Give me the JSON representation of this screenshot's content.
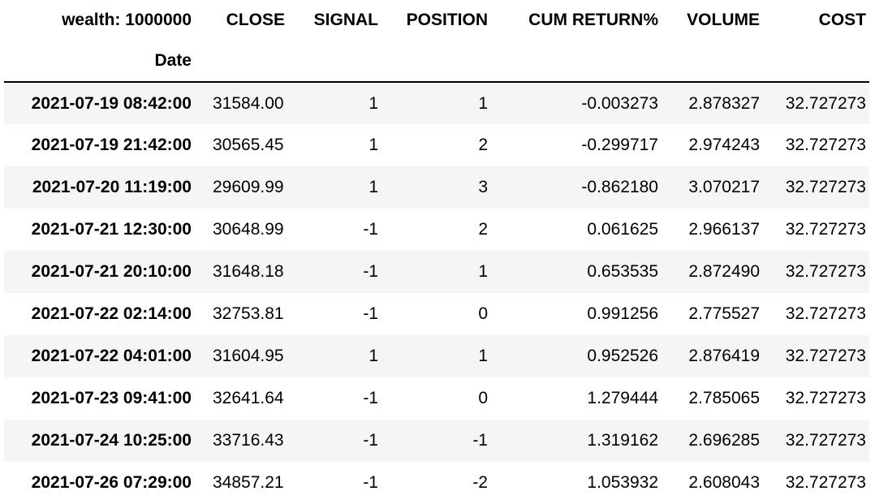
{
  "header": {
    "corner_label": "wealth: 1000000",
    "columns": [
      "CLOSE",
      "SIGNAL",
      "POSITION",
      "CUM RETURN%",
      "VOLUME",
      "COST"
    ],
    "index_name": "Date"
  },
  "rows": [
    {
      "date": "2021-07-19 08:42:00",
      "close": "31584.00",
      "signal": "1",
      "position": "1",
      "cum_return": "-0.003273",
      "volume": "2.878327",
      "cost": "32.727273"
    },
    {
      "date": "2021-07-19 21:42:00",
      "close": "30565.45",
      "signal": "1",
      "position": "2",
      "cum_return": "-0.299717",
      "volume": "2.974243",
      "cost": "32.727273"
    },
    {
      "date": "2021-07-20 11:19:00",
      "close": "29609.99",
      "signal": "1",
      "position": "3",
      "cum_return": "-0.862180",
      "volume": "3.070217",
      "cost": "32.727273"
    },
    {
      "date": "2021-07-21 12:30:00",
      "close": "30648.99",
      "signal": "-1",
      "position": "2",
      "cum_return": "0.061625",
      "volume": "2.966137",
      "cost": "32.727273"
    },
    {
      "date": "2021-07-21 20:10:00",
      "close": "31648.18",
      "signal": "-1",
      "position": "1",
      "cum_return": "0.653535",
      "volume": "2.872490",
      "cost": "32.727273"
    },
    {
      "date": "2021-07-22 02:14:00",
      "close": "32753.81",
      "signal": "-1",
      "position": "0",
      "cum_return": "0.991256",
      "volume": "2.775527",
      "cost": "32.727273"
    },
    {
      "date": "2021-07-22 04:01:00",
      "close": "31604.95",
      "signal": "1",
      "position": "1",
      "cum_return": "0.952526",
      "volume": "2.876419",
      "cost": "32.727273"
    },
    {
      "date": "2021-07-23 09:41:00",
      "close": "32641.64",
      "signal": "-1",
      "position": "0",
      "cum_return": "1.279444",
      "volume": "2.785065",
      "cost": "32.727273"
    },
    {
      "date": "2021-07-24 10:25:00",
      "close": "33716.43",
      "signal": "-1",
      "position": "-1",
      "cum_return": "1.319162",
      "volume": "2.696285",
      "cost": "32.727273"
    },
    {
      "date": "2021-07-26 07:29:00",
      "close": "34857.21",
      "signal": "-1",
      "position": "-2",
      "cum_return": "1.053932",
      "volume": "2.608043",
      "cost": "32.727273"
    }
  ],
  "colors": {
    "stripe": "#f5f5f5",
    "border": "#000000",
    "text": "#000000"
  }
}
